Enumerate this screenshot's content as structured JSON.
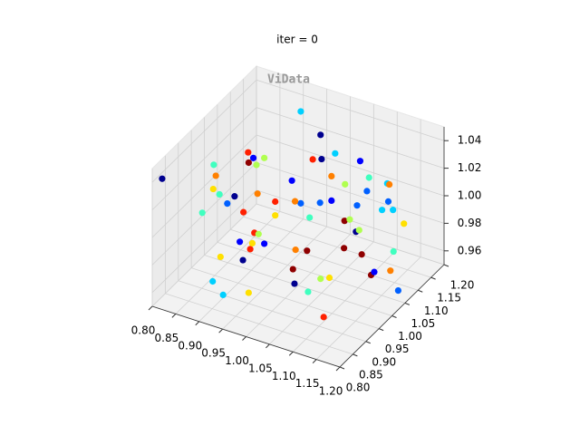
{
  "chart_data": {
    "type": "scatter3d",
    "title": "iter = 0",
    "annotation": "ViData",
    "xlim": [
      0.8,
      1.2
    ],
    "ylim": [
      0.8,
      1.2
    ],
    "zlim": [
      0.95,
      1.05
    ],
    "xticks": [
      {
        "value": 0.8,
        "label": "0.80"
      },
      0.85,
      {
        "value": 0.9,
        "label": "0.90"
      },
      0.95,
      {
        "value": 1.0,
        "label": "1.00"
      },
      1.05,
      {
        "value": 1.1,
        "label": "1.10"
      },
      1.15,
      {
        "value": 1.2,
        "label": "1.20"
      }
    ],
    "yticks": [
      {
        "value": 0.8,
        "label": "0.80"
      },
      0.85,
      {
        "value": 0.9,
        "label": "0.90"
      },
      0.95,
      {
        "value": 1.0,
        "label": "1.00"
      },
      1.05,
      {
        "value": 1.1,
        "label": "1.10"
      },
      1.15,
      {
        "value": 1.2,
        "label": "1.20"
      }
    ],
    "zticks": [
      0.96,
      0.98,
      {
        "value": 1.0,
        "label": "1.00"
      },
      1.02,
      1.04
    ],
    "grid": true,
    "series": [
      {
        "x": [
          0.81,
          0.83,
          0.86,
          0.9,
          0.95,
          1.0,
          1.05,
          1.1,
          1.15,
          1.19,
          0.82,
          0.88,
          0.93,
          0.97,
          1.02,
          1.07,
          1.12,
          1.17,
          0.84,
          0.9,
          0.96,
          1.01,
          1.06,
          1.11,
          1.16,
          0.85,
          0.91,
          0.98,
          1.04,
          1.09,
          1.14,
          1.18,
          0.87,
          0.92,
          0.99,
          1.03,
          1.08,
          1.13,
          0.83,
          0.94,
          1.0,
          1.06,
          1.12,
          1.19,
          0.86,
          0.95,
          1.02,
          1.1,
          1.17,
          0.89,
          0.97,
          1.05,
          1.14,
          0.81,
          0.92,
          1.01,
          1.08,
          1.16,
          0.88,
          0.99,
          1.07,
          1.15,
          0.84,
          0.96,
          1.04,
          1.11,
          1.18,
          0.9,
          1.0,
          1.13
        ],
        "y": [
          0.82,
          1.15,
          0.95,
          1.05,
          0.88,
          1.18,
          0.92,
          1.1,
          0.85,
          1.0,
          1.08,
          0.9,
          1.17,
          0.83,
          1.02,
          0.96,
          1.13,
          0.87,
          0.99,
          1.19,
          0.86,
          1.11,
          0.93,
          1.04,
          0.81,
          1.14,
          0.89,
          1.07,
          0.84,
          1.16,
          0.97,
          1.03,
          0.91,
          1.12,
          0.85,
          1.18,
          0.94,
          1.01,
          0.98,
          0.82,
          1.09,
          0.88,
          1.15,
          0.95,
          1.06,
          0.93,
          1.19,
          0.8,
          1.1,
          0.87,
          1.14,
          0.9,
          1.02,
          1.17,
          0.96,
          0.83,
          1.12,
          0.89,
          1.04,
          1.16,
          0.86,
          1.08,
          0.92,
          1.2,
          0.84,
          1.0,
          1.06,
          0.99,
          0.81,
          1.13
        ],
        "z": [
          1.04,
          0.97,
          1.01,
          0.96,
          1.02,
          0.99,
          1.03,
          0.95,
          1.0,
          1.045,
          0.98,
          1.035,
          0.96,
          1.01,
          1.04,
          0.97,
          1.0,
          1.02,
          0.955,
          1.03,
          0.99,
          1.01,
          0.965,
          1.045,
          0.98,
          1.0,
          1.02,
          0.96,
          1.035,
          0.985,
          1.01,
          0.975,
          1.04,
          0.995,
          1.015,
          0.96,
          1.03,
          0.985,
          1.005,
          0.97,
          1.025,
          1.04,
          0.96,
          0.99,
          1.02,
          1.045,
          0.975,
          1.01,
          0.995,
          0.965,
          1.03,
          1.0,
          1.04,
          0.99,
          0.975,
          1.02,
          1.005,
          1.035,
          0.96,
          1.015,
          0.985,
          1.025,
          1.0,
          0.97,
          1.045,
          1.01,
          0.955,
          1.03,
          0.98,
          0.995
        ],
        "colors": [
          "#00008f",
          "#ff8000",
          "#40ffbf",
          "#0000ff",
          "#ff2000",
          "#b0ff50",
          "#0060ff",
          "#8f0000",
          "#ffe000",
          "#00d0ff",
          "#00008f",
          "#ff8000",
          "#40ffbf",
          "#0000ff",
          "#ff2000",
          "#b0ff50",
          "#0060ff",
          "#8f0000",
          "#ffe000",
          "#00d0ff",
          "#00008f",
          "#ff8000",
          "#40ffbf",
          "#0000ff",
          "#ff2000",
          "#b0ff50",
          "#0060ff",
          "#8f0000",
          "#ffe000",
          "#00d0ff",
          "#00008f",
          "#ff8000",
          "#40ffbf",
          "#0000ff",
          "#ff2000",
          "#b0ff50",
          "#0060ff",
          "#8f0000",
          "#ffe000",
          "#00d0ff",
          "#00008f",
          "#ff8000",
          "#40ffbf",
          "#0000ff",
          "#ff2000",
          "#b0ff50",
          "#0060ff",
          "#8f0000",
          "#ffe000",
          "#00d0ff",
          "#00008f",
          "#ff8000",
          "#40ffbf",
          "#0000ff",
          "#ff2000",
          "#b0ff50",
          "#0060ff",
          "#8f0000",
          "#ffe000",
          "#00d0ff",
          "#00008f",
          "#ff8000",
          "#40ffbf",
          "#0000ff",
          "#ff2000",
          "#b0ff50",
          "#0060ff",
          "#8f0000",
          "#ffe000",
          "#00d0ff"
        ]
      }
    ]
  }
}
